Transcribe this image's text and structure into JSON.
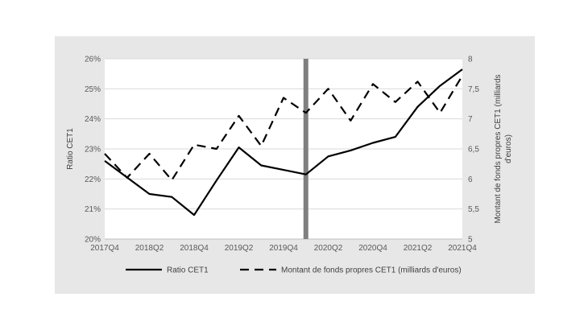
{
  "chart_data": {
    "type": "line",
    "title": "",
    "x_tick_labels": [
      "2017Q4",
      "2018Q2",
      "2018Q4",
      "2019Q2",
      "2019Q4",
      "2020Q2",
      "2020Q4",
      "2021Q2",
      "2021Q4"
    ],
    "x": [
      "2017Q4",
      "2018Q1",
      "2018Q2",
      "2018Q3",
      "2018Q4",
      "2019Q1",
      "2019Q2",
      "2019Q3",
      "2019Q4",
      "2020Q1",
      "2020Q2",
      "2020Q3",
      "2020Q4",
      "2021Q1",
      "2021Q2",
      "2021Q3",
      "2021Q4"
    ],
    "ylabel_left": "Ratio CET1",
    "ylabel_right": "Montant de fonds propres CET1 (milliards d'euros)",
    "ylim_left": [
      20,
      26
    ],
    "yticks_left": [
      "20%",
      "21%",
      "22%",
      "23%",
      "24%",
      "25%",
      "26%"
    ],
    "ylim_right": [
      5,
      8
    ],
    "yticks_right": [
      "5",
      "5,5",
      "6",
      "6,5",
      "7",
      "7,5",
      "8"
    ],
    "vertical_marker": "2020Q1",
    "legend_position": "bottom",
    "series": [
      {
        "name": "Ratio CET1",
        "axis": "left",
        "style": "solid",
        "values": [
          22.6,
          22.05,
          21.5,
          21.4,
          20.8,
          21.95,
          23.05,
          22.45,
          22.3,
          22.15,
          22.75,
          22.95,
          23.2,
          23.4,
          24.4,
          25.1,
          25.65
        ]
      },
      {
        "name": "Montant de fonds propres CET1 (milliards d'euros)",
        "axis": "right",
        "style": "dashed",
        "values": [
          6.42,
          6.02,
          6.42,
          5.98,
          6.57,
          6.5,
          7.05,
          6.55,
          7.35,
          7.1,
          7.5,
          6.97,
          7.58,
          7.28,
          7.62,
          7.1,
          7.72
        ]
      }
    ]
  }
}
